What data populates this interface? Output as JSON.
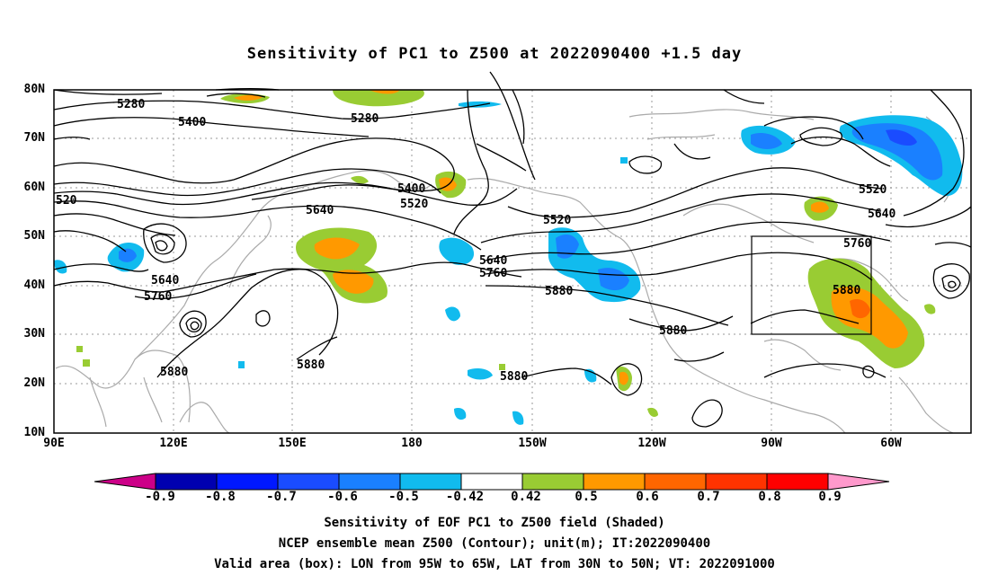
{
  "title": "Sensitivity of PC1 to Z500 at 2022090400 +1.5 day",
  "lat_labels": [
    "80N",
    "70N",
    "60N",
    "50N",
    "40N",
    "30N",
    "20N",
    "10N"
  ],
  "lon_labels": [
    "90E",
    "120E",
    "150E",
    "180",
    "150W",
    "120W",
    "90W",
    "60W"
  ],
  "contour_labels": [
    "5280",
    "5400",
    "5280",
    "520",
    "5400",
    "5520",
    "5640",
    "5520",
    "5640",
    "5760",
    "5640",
    "5760",
    "5880",
    "5520",
    "5640",
    "5760",
    "5880",
    "5880",
    "5880",
    "5880",
    "5880"
  ],
  "colorbar": {
    "ticks": [
      "-0.9",
      "-0.8",
      "-0.7",
      "-0.6",
      "-0.5",
      "-0.42",
      "0.42",
      "0.5",
      "0.6",
      "0.7",
      "0.8",
      "0.9"
    ],
    "colors": [
      "#cc0088",
      "#0000b0",
      "#0018ff",
      "#1a4cff",
      "#1a80ff",
      "#11bbee",
      "#ffffff",
      "#99cc33",
      "#ff9900",
      "#ff6600",
      "#ff3300",
      "#ff0000",
      "#ff99cc"
    ]
  },
  "footer": [
    "Sensitivity of EOF PC1 to Z500 field (Shaded)",
    "NCEP ensemble mean Z500 (Contour); unit(m); IT:2022090400",
    "Valid area (box): LON from 95W to 65W, LAT from 30N to 50N; VT: 2022091000"
  ]
}
